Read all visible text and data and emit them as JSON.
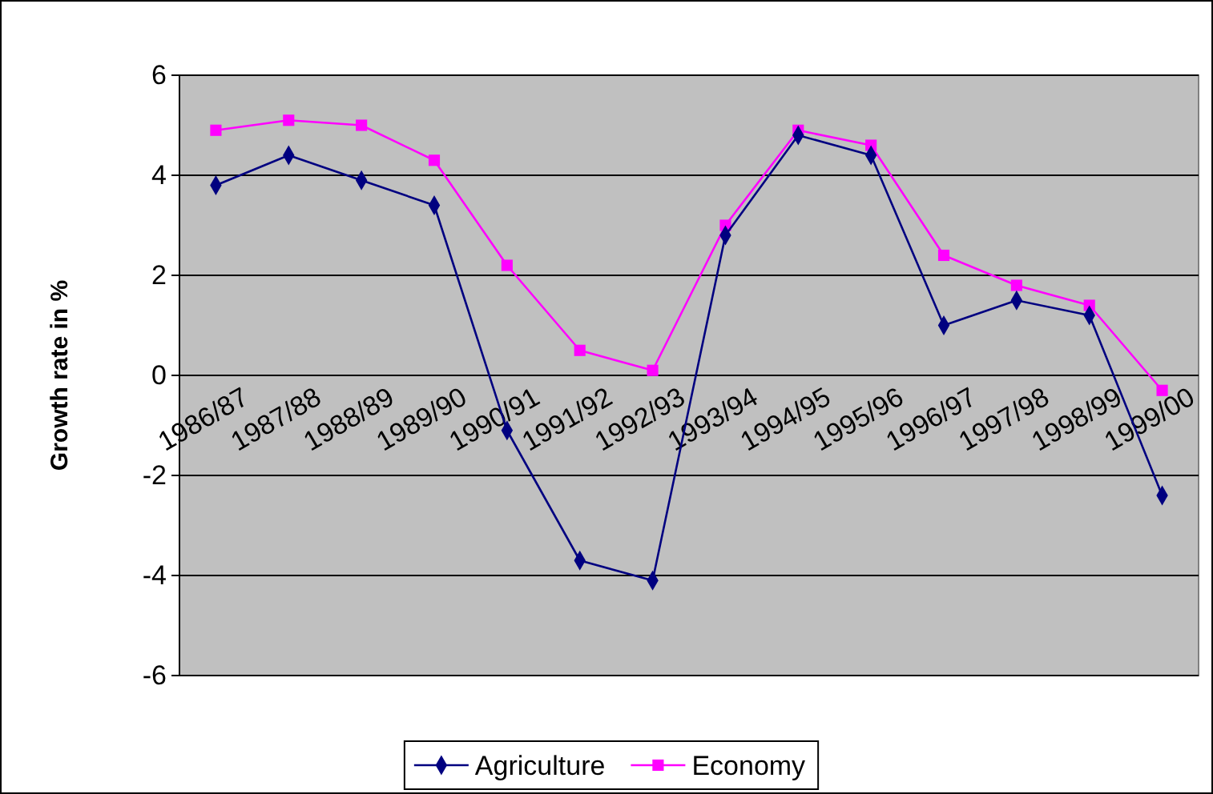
{
  "chart_data": {
    "type": "line",
    "ylabel": "Growth rate in %",
    "categories": [
      "1986/87",
      "1987/88",
      "1988/89",
      "1989/90",
      "1990/91",
      "1991/92",
      "1992/93",
      "1993/94",
      "1994/95",
      "1995/96",
      "1996/97",
      "1997/98",
      "1998/99",
      "1999/00"
    ],
    "series": [
      {
        "name": "Agriculture",
        "color": "#000080",
        "marker": "diamond",
        "values": [
          3.8,
          4.4,
          3.9,
          3.4,
          -1.1,
          -3.7,
          -4.1,
          2.8,
          4.8,
          4.4,
          1.0,
          1.5,
          1.2,
          -2.4
        ]
      },
      {
        "name": "Economy",
        "color": "#ff00ff",
        "marker": "square",
        "values": [
          4.9,
          5.1,
          5.0,
          4.3,
          2.2,
          0.5,
          0.1,
          3.0,
          4.9,
          4.6,
          2.4,
          1.8,
          1.4,
          -0.3
        ]
      }
    ],
    "ylim": [
      -6,
      6
    ],
    "yticks": [
      -6,
      -4,
      -2,
      0,
      2,
      4,
      6
    ],
    "grid": "y",
    "legend": "bottom",
    "line_style": "solid"
  }
}
